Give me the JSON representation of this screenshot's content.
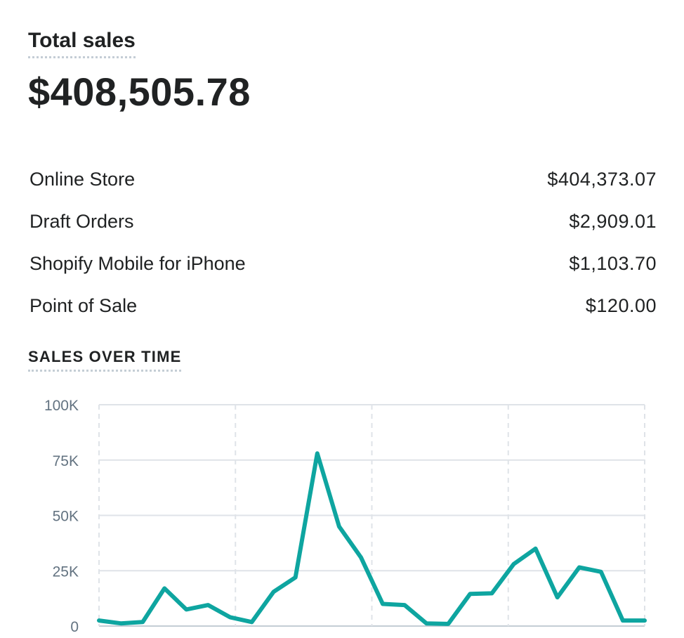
{
  "summary": {
    "title": "Total sales",
    "total": "$408,505.78",
    "channels": [
      {
        "name": "Online Store",
        "amount": "$404,373.07"
      },
      {
        "name": "Draft Orders",
        "amount": "$2,909.01"
      },
      {
        "name": "Shopify Mobile for iPhone",
        "amount": "$1,103.70"
      },
      {
        "name": "Point of Sale",
        "amount": "$120.00"
      }
    ]
  },
  "chart_data": {
    "type": "line",
    "title": "SALES OVER TIME",
    "ylim": [
      0,
      100000
    ],
    "yticks": [
      0,
      25000,
      50000,
      75000,
      100000
    ],
    "ytick_labels": [
      "0",
      "25K",
      "50K",
      "75K",
      "100K"
    ],
    "grid": true,
    "series_color": "#0ea5a0",
    "x": [
      0,
      1,
      2,
      3,
      4,
      5,
      6,
      7,
      8,
      9,
      10,
      11,
      12,
      13,
      14,
      15,
      16,
      17,
      18,
      19,
      20,
      21,
      22,
      23,
      24,
      25
    ],
    "values": [
      2500,
      1200,
      1800,
      17000,
      7500,
      9500,
      4000,
      1800,
      15500,
      22000,
      78000,
      45000,
      31000,
      10000,
      9500,
      1200,
      1000,
      14500,
      14800,
      28000,
      35000,
      13000,
      26500,
      24500,
      2500,
      2500
    ]
  }
}
